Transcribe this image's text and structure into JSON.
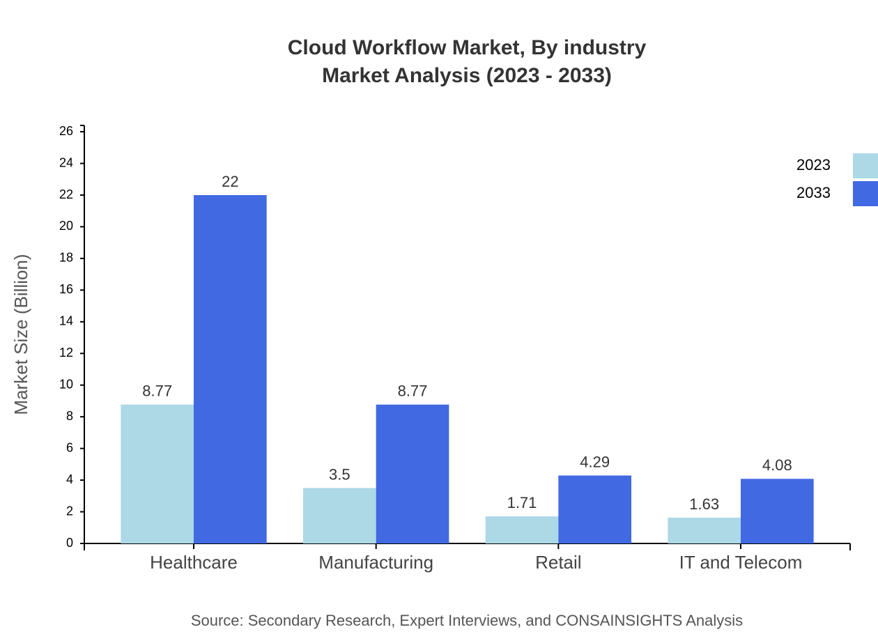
{
  "chart_data": {
    "type": "bar",
    "title": "Cloud Workflow Market, By industry",
    "subtitle": "Market Analysis (2023 - 2033)",
    "y_label": "Market Size (Billion)",
    "source": "Source: Secondary Research, Expert Interviews, and CONSAINSIGHTS Analysis",
    "categories": [
      "Healthcare",
      "Manufacturing",
      "Retail",
      "IT and Telecom"
    ],
    "series": [
      {
        "name": "2023",
        "color": "#add8e6",
        "values": [
          8.77,
          3.5,
          1.71,
          1.63
        ]
      },
      {
        "name": "2033",
        "color": "#4169e1",
        "values": [
          22,
          8.77,
          4.29,
          4.08
        ]
      }
    ],
    "ylim": [
      0,
      26.4
    ],
    "yticks": [
      0,
      2,
      4,
      6,
      8,
      10,
      12,
      14,
      16,
      18,
      20,
      22,
      24,
      26
    ],
    "legend": "top-right"
  }
}
